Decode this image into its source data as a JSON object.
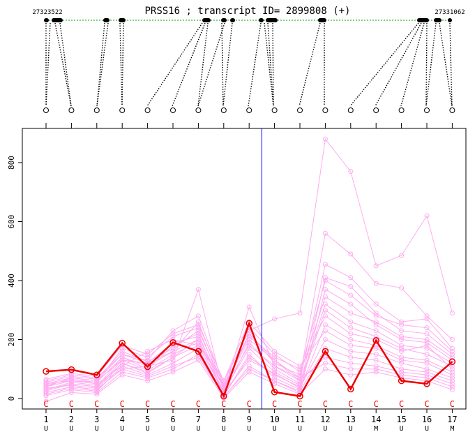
{
  "header": {
    "title": "PRSS16 ; transcript ID= 2899808 (+)",
    "coord_start": "27323522",
    "coord_end": "27331062"
  },
  "colors": {
    "highlight": "#ee0000",
    "background_lines": "#ffaaf0",
    "divider": "#0000ff",
    "gene_line": "#00a000",
    "exon": "#000000"
  },
  "icons": [
    "probe-circle-icon"
  ],
  "chart_data": {
    "type": "line",
    "title": "PRSS16 ; transcript ID= 2899808 (+)",
    "x": [
      1,
      2,
      3,
      4,
      5,
      6,
      7,
      8,
      9,
      10,
      11,
      12,
      13,
      14,
      15,
      16,
      17
    ],
    "x_tick_labels": [
      "1",
      "2",
      "3",
      "4",
      "5",
      "6",
      "7",
      "8",
      "9",
      "10",
      "11",
      "12",
      "13",
      "14",
      "15",
      "16",
      "17"
    ],
    "x_sublabels": [
      "U",
      "U",
      "U",
      "U",
      "U",
      "U",
      "U",
      "U",
      "U",
      "U",
      "U",
      "U",
      "U",
      "M",
      "U",
      "U",
      "M"
    ],
    "x_markers": [
      "C",
      "C",
      "C",
      "C",
      "C",
      "C",
      "C",
      "C",
      "C",
      "C",
      "C",
      "C",
      "C",
      "C",
      "C",
      "C",
      "C"
    ],
    "ylim": [
      -20,
      920
    ],
    "y_ticks": [
      0,
      200,
      400,
      600,
      800
    ],
    "grid": false,
    "divider_x": 9.5,
    "highlight_series": [
      92,
      98,
      80,
      188,
      108,
      190,
      160,
      8,
      255,
      22,
      8,
      160,
      32,
      197,
      60,
      50,
      125
    ],
    "background_series": [
      [
        40,
        60,
        50,
        110,
        160,
        200,
        180,
        60,
        230,
        270,
        290,
        880,
        770,
        450,
        485,
        620,
        290
      ],
      [
        30,
        55,
        45,
        100,
        110,
        130,
        370,
        20,
        310,
        110,
        70,
        560,
        490,
        390,
        375,
        280,
        200
      ],
      [
        50,
        70,
        60,
        130,
        120,
        160,
        260,
        40,
        200,
        130,
        60,
        455,
        410,
        320,
        260,
        270,
        170
      ],
      [
        20,
        40,
        30,
        120,
        90,
        140,
        200,
        10,
        140,
        80,
        40,
        410,
        380,
        290,
        230,
        220,
        150
      ],
      [
        60,
        80,
        70,
        150,
        130,
        230,
        280,
        50,
        240,
        150,
        90,
        400,
        350,
        280,
        250,
        240,
        160
      ],
      [
        10,
        30,
        20,
        90,
        70,
        100,
        150,
        5,
        110,
        60,
        20,
        370,
        320,
        250,
        200,
        190,
        130
      ],
      [
        45,
        65,
        55,
        170,
        140,
        210,
        240,
        30,
        220,
        120,
        80,
        345,
        290,
        260,
        210,
        200,
        140
      ],
      [
        25,
        50,
        40,
        140,
        100,
        180,
        220,
        15,
        190,
        100,
        50,
        320,
        260,
        230,
        180,
        170,
        120
      ],
      [
        35,
        45,
        35,
        130,
        95,
        150,
        190,
        25,
        170,
        90,
        45,
        300,
        240,
        210,
        170,
        150,
        110
      ],
      [
        55,
        75,
        65,
        160,
        125,
        170,
        230,
        45,
        210,
        140,
        100,
        280,
        220,
        200,
        160,
        180,
        100
      ],
      [
        15,
        35,
        25,
        110,
        80,
        120,
        170,
        10,
        150,
        70,
        30,
        250,
        200,
        180,
        140,
        130,
        90
      ],
      [
        65,
        85,
        75,
        180,
        150,
        220,
        250,
        60,
        260,
        160,
        110,
        230,
        180,
        170,
        130,
        120,
        80
      ],
      [
        30,
        50,
        40,
        120,
        85,
        140,
        180,
        20,
        130,
        85,
        35,
        200,
        160,
        150,
        120,
        100,
        70
      ],
      [
        20,
        40,
        30,
        100,
        75,
        110,
        140,
        8,
        100,
        60,
        25,
        170,
        140,
        130,
        100,
        90,
        60
      ],
      [
        50,
        60,
        55,
        140,
        110,
        160,
        200,
        35,
        180,
        110,
        60,
        140,
        120,
        110,
        90,
        80,
        50
      ],
      [
        40,
        70,
        60,
        150,
        120,
        190,
        210,
        40,
        220,
        130,
        70,
        120,
        100,
        100,
        80,
        70,
        40
      ],
      [
        -10,
        20,
        15,
        80,
        60,
        90,
        130,
        2,
        90,
        50,
        15,
        100,
        80,
        90,
        70,
        60,
        30
      ]
    ]
  }
}
